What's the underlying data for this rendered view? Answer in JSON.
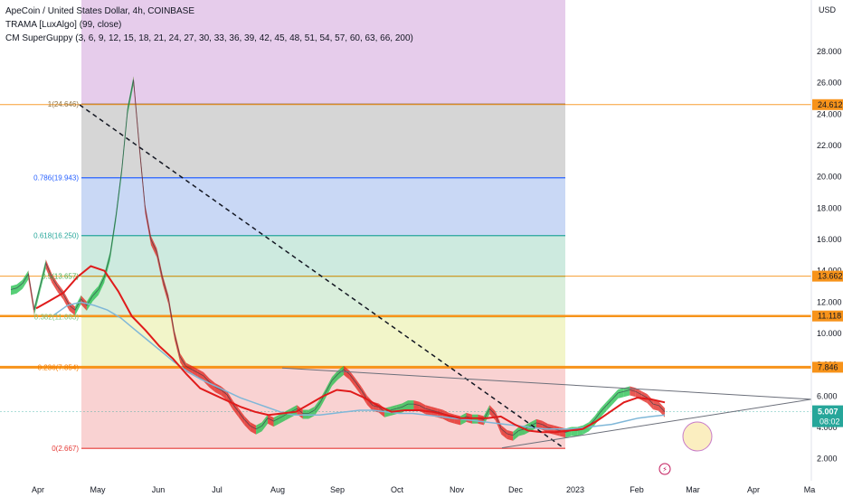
{
  "header": {
    "title": "ApeCoin / United States Dollar, 4h, COINBASE",
    "indicator1": "TRAMA [LuxAlgo] (99, close)",
    "indicator2": "CM SuperGuppy (3, 6, 9, 12, 15, 18, 21, 24, 27, 30, 33, 36, 39, 42, 45, 48, 51, 54, 57, 60, 63, 66, 200)"
  },
  "chart_data": {
    "type": "line",
    "currency_label": "USD",
    "y_ticks": [
      "2.000",
      "4.000",
      "6.000",
      "8.000",
      "10.000",
      "12.000",
      "14.000",
      "16.000",
      "18.000",
      "20.000",
      "22.000",
      "24.000",
      "26.000",
      "28.000"
    ],
    "y_tick_values": [
      2,
      4,
      6,
      8,
      10,
      12,
      14,
      16,
      18,
      20,
      22,
      24,
      26,
      28
    ],
    "x_ticks": [
      "Apr",
      "May",
      "Jun",
      "Jul",
      "Aug",
      "Sep",
      "Oct",
      "Nov",
      "Dec",
      "2023",
      "Feb",
      "Mar",
      "Apr",
      "Ma"
    ],
    "ylim": [
      0.6,
      30.6
    ],
    "fib_levels": [
      {
        "label": "1(24.646)",
        "value": 24.646,
        "color": "#8b6f3e"
      },
      {
        "label": "0.786(19.943)",
        "value": 19.943,
        "color": "#2962ff"
      },
      {
        "label": "0.618(16.250)",
        "value": 16.25,
        "color": "#26a69a"
      },
      {
        "label": "0.5(13.657)",
        "value": 13.657,
        "color": "#4caf50"
      },
      {
        "label": "0.382(11.063)",
        "value": 11.063,
        "color": "#81c784"
      },
      {
        "label": "0.236(7.854)",
        "value": 7.854,
        "color": "#f57c00"
      },
      {
        "label": "0(2.667)",
        "value": 2.667,
        "color": "#e53935"
      }
    ],
    "price_tags": [
      {
        "label": "24.612",
        "value": 24.612,
        "color": "#f7931a"
      },
      {
        "label": "13.662",
        "value": 13.662,
        "color": "#f7931a"
      },
      {
        "label": "11.118",
        "value": 11.118,
        "color": "#f7931a"
      },
      {
        "label": "7.846",
        "value": 7.846,
        "color": "#f7931a"
      }
    ],
    "current_price": {
      "label": "5.007",
      "countdown": "08:02",
      "value": 5.007,
      "color": "#26a69a"
    },
    "price_series": [
      12.8,
      12.9,
      13.2,
      13.8,
      11.5,
      13.0,
      14.5,
      13.6,
      13.0,
      12.5,
      11.8,
      11.5,
      12.2,
      11.8,
      12.4,
      12.8,
      13.6,
      15.0,
      17.5,
      20.5,
      24.3,
      26.2,
      22.0,
      18.0,
      16.0,
      15.2,
      13.5,
      12.2,
      10.0,
      8.5,
      7.9,
      7.7,
      7.5,
      7.3,
      6.9,
      6.6,
      6.4,
      6.1,
      5.5,
      5.0,
      4.5,
      4.1,
      3.9,
      4.1,
      4.6,
      4.4,
      4.6,
      4.8,
      5.0,
      5.2,
      4.9,
      4.9,
      5.1,
      5.6,
      6.3,
      7.0,
      7.4,
      7.7,
      7.4,
      6.9,
      6.4,
      5.8,
      5.4,
      5.3,
      5.0,
      5.1,
      5.2,
      5.3,
      5.5,
      5.5,
      5.4,
      5.2,
      5.1,
      5.0,
      4.9,
      4.7,
      4.6,
      4.5,
      4.7,
      4.6,
      4.6,
      4.5,
      5.2,
      4.8,
      3.9,
      3.6,
      3.5,
      3.8,
      3.9,
      4.1,
      4.3,
      4.2,
      4.0,
      3.9,
      3.8,
      3.7,
      3.8,
      3.8,
      3.9,
      4.1,
      4.5,
      5.0,
      5.4,
      5.8,
      6.2,
      6.3,
      6.4,
      6.3,
      6.1,
      5.9,
      5.5,
      5.4,
      5.0
    ],
    "ma_series": [
      11.6,
      12.1,
      12.6,
      13.6,
      14.3,
      14.0,
      12.7,
      11.1,
      10.2,
      9.2,
      8.4,
      7.4,
      6.5,
      6.1,
      5.7,
      5.3,
      5.0,
      4.8,
      4.9,
      5.0,
      5.5,
      6.0,
      6.4,
      6.3,
      5.9,
      5.4,
      5.0,
      5.1,
      5.1,
      5.0,
      4.8,
      4.6,
      4.6,
      4.6,
      4.7,
      4.2,
      3.8,
      3.7,
      3.7,
      3.8,
      3.9,
      4.4,
      5.0,
      5.6,
      5.9,
      5.8,
      5.6
    ],
    "teal_series": [
      11.2,
      11.8,
      12.0,
      11.8,
      11.5,
      11.0,
      10.3,
      9.6,
      8.9,
      8.2,
      7.6,
      7.1,
      6.7,
      6.3,
      5.9,
      5.6,
      5.3,
      5.0,
      4.8,
      4.8,
      4.8,
      4.9,
      5.0,
      5.1,
      5.1,
      5.0,
      4.9,
      4.9,
      4.8,
      4.7,
      4.6,
      4.5,
      4.4,
      4.3,
      4.2,
      4.1,
      4.0,
      3.9,
      3.9,
      3.9,
      4.0,
      4.1,
      4.2,
      4.4,
      4.6,
      4.7,
      4.8
    ],
    "trend_dashed": {
      "from": {
        "x": "May",
        "y": 24.6
      },
      "to": {
        "x": "Dec",
        "y": 2.7
      }
    },
    "triangle_upper": {
      "start": 7.8,
      "end": 5.8
    },
    "triangle_lower": {
      "start": 2.7,
      "end": 5.8
    }
  },
  "ui": {
    "lightning_icon": "lightning-icon",
    "event_marker": "event-circle"
  }
}
